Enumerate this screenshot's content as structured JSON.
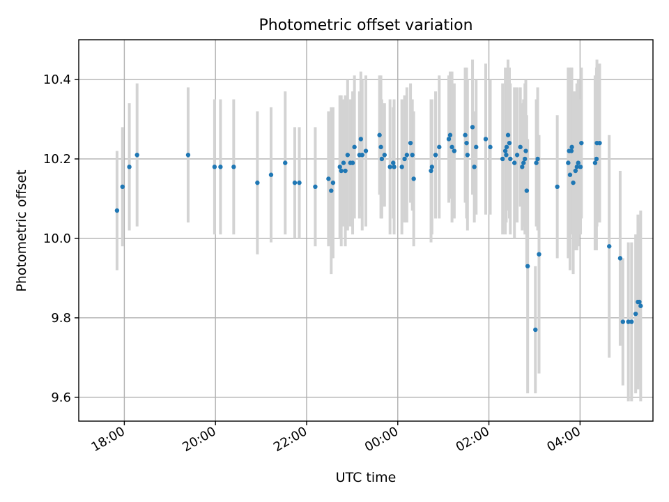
{
  "chart_data": {
    "type": "scatter",
    "title": "Photometric offset variation",
    "xlabel": "UTC time",
    "ylabel": "Photometric offset",
    "x_unit": "hours after 00:00 UTC",
    "xlim": [
      -7.0,
      5.6
    ],
    "ylim": [
      9.54,
      10.5
    ],
    "x_ticks": [
      {
        "value": -6,
        "label": "18:00"
      },
      {
        "value": -4,
        "label": "20:00"
      },
      {
        "value": -2,
        "label": "22:00"
      },
      {
        "value": 0,
        "label": "00:00"
      },
      {
        "value": 2,
        "label": "02:00"
      },
      {
        "value": 4,
        "label": "04:00"
      }
    ],
    "y_ticks": [
      {
        "value": 9.6,
        "label": "9.6"
      },
      {
        "value": 9.8,
        "label": "9.8"
      },
      {
        "value": 10.0,
        "label": "10.0"
      },
      {
        "value": 10.2,
        "label": "10.2"
      },
      {
        "value": 10.4,
        "label": "10.4"
      }
    ],
    "grid": true,
    "colors": {
      "points": "#1f77b4",
      "errorbars": "#d3d3d3"
    },
    "series": [
      {
        "x": [
          -6.16,
          -6.04,
          -5.89,
          -5.72,
          -4.6,
          -4.02,
          -3.89,
          -3.6,
          -3.08,
          -2.78,
          -2.47,
          -2.26,
          -2.16,
          -1.81,
          -1.52,
          -1.46,
          -1.42,
          -1.27,
          -1.24,
          -1.19,
          -1.15,
          -1.1,
          -1.04,
          -0.99,
          -0.95,
          -0.84,
          -0.81,
          -0.78,
          -0.7,
          -0.4,
          -0.37,
          -0.35,
          -0.29,
          -0.17,
          -0.1,
          -0.08,
          0.09,
          0.15,
          0.2,
          0.28,
          0.32,
          0.35,
          0.73,
          0.75,
          0.83,
          0.91,
          1.12,
          1.15,
          1.19,
          1.24,
          1.48,
          1.51,
          1.53,
          1.64,
          1.68,
          1.72,
          1.93,
          2.03,
          2.3,
          2.36,
          2.38,
          2.39,
          2.42,
          2.45,
          2.47,
          2.56,
          2.62,
          2.69,
          2.73,
          2.76,
          2.79,
          2.81,
          2.83,
          2.85,
          3.02,
          3.04,
          3.07,
          3.1,
          3.5,
          3.74,
          3.76,
          3.78,
          3.81,
          3.82,
          3.85,
          3.9,
          3.93,
          3.96,
          4.01,
          4.03,
          4.33,
          4.36,
          4.37,
          4.43,
          4.64,
          4.88,
          4.94,
          5.06,
          5.13,
          5.22,
          5.27,
          5.3,
          5.33
        ],
        "y": [
          10.07,
          10.13,
          10.18,
          10.21,
          10.21,
          10.18,
          10.18,
          10.18,
          10.14,
          10.16,
          10.19,
          10.14,
          10.14,
          10.13,
          10.15,
          10.12,
          10.14,
          10.18,
          10.17,
          10.19,
          10.17,
          10.21,
          10.19,
          10.19,
          10.23,
          10.21,
          10.25,
          10.21,
          10.22,
          10.26,
          10.23,
          10.2,
          10.21,
          10.18,
          10.19,
          10.18,
          10.18,
          10.2,
          10.21,
          10.24,
          10.21,
          10.15,
          10.17,
          10.18,
          10.21,
          10.23,
          10.25,
          10.26,
          10.23,
          10.22,
          10.26,
          10.24,
          10.21,
          10.28,
          10.18,
          10.23,
          10.25,
          10.23,
          10.2,
          10.22,
          10.21,
          10.23,
          10.26,
          10.24,
          10.2,
          10.19,
          10.21,
          10.23,
          10.18,
          10.19,
          10.2,
          10.22,
          10.12,
          9.93,
          9.77,
          10.19,
          10.2,
          9.96,
          10.13,
          10.19,
          10.22,
          10.16,
          10.22,
          10.23,
          10.14,
          10.17,
          10.18,
          10.19,
          10.18,
          10.24,
          10.19,
          10.2,
          10.24,
          10.24,
          9.98,
          9.95,
          9.79,
          9.79,
          9.79,
          9.81,
          9.84,
          9.84,
          9.83
        ],
        "yerr": [
          0.15,
          0.15,
          0.16,
          0.18,
          0.17,
          0.17,
          0.17,
          0.17,
          0.18,
          0.17,
          0.18,
          0.14,
          0.14,
          0.15,
          0.17,
          0.21,
          0.19,
          0.18,
          0.19,
          0.16,
          0.19,
          0.19,
          0.16,
          0.18,
          0.18,
          0.16,
          0.17,
          0.19,
          0.19,
          0.15,
          0.18,
          0.15,
          0.13,
          0.17,
          0.14,
          0.17,
          0.17,
          0.16,
          0.17,
          0.15,
          0.14,
          0.17,
          0.18,
          0.17,
          0.16,
          0.18,
          0.16,
          0.16,
          0.19,
          0.17,
          0.17,
          0.19,
          0.19,
          0.17,
          0.14,
          0.17,
          0.19,
          0.17,
          0.19,
          0.21,
          0.17,
          0.16,
          0.19,
          0.19,
          0.19,
          0.19,
          0.17,
          0.15,
          0.16,
          0.16,
          0.19,
          0.18,
          0.19,
          0.32,
          0.16,
          0.16,
          0.18,
          0.3,
          0.18,
          0.24,
          0.21,
          0.24,
          0.21,
          0.2,
          0.23,
          0.2,
          0.21,
          0.21,
          0.17,
          0.19,
          0.22,
          0.23,
          0.21,
          0.2,
          0.28,
          0.22,
          0.16,
          0.2,
          0.2,
          0.2,
          0.22,
          0.2,
          0.24
        ]
      }
    ]
  }
}
